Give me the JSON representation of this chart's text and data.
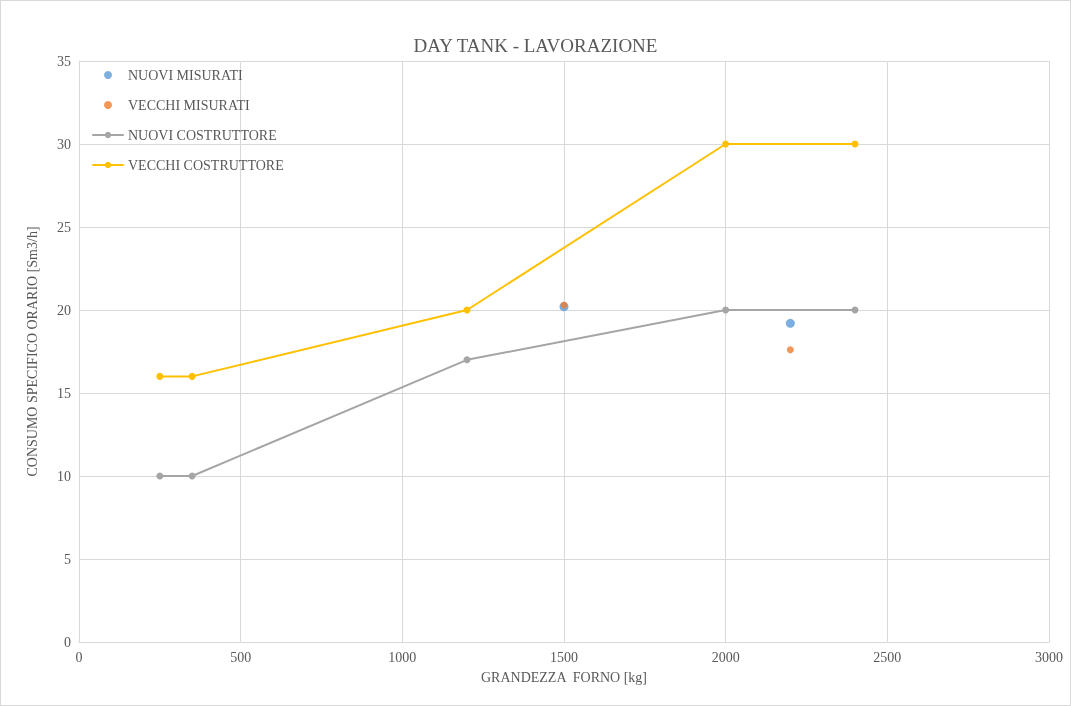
{
  "chart_data": {
    "type": "line",
    "title": "DAY TANK - LAVORAZIONE",
    "xlabel": "GRANDEZZA  FORNO [kg]",
    "ylabel": "CONSUMO SPECIFICO ORARIO [Sm3/h]",
    "series": [
      {
        "name": "NUOVI MISURATI",
        "type": "scatter",
        "color": "#5b9bd5",
        "x": [
          1500,
          2200
        ],
        "values": [
          20.2,
          19.2
        ]
      },
      {
        "name": "VECCHI MISURATI",
        "type": "scatter",
        "color": "#ed7d31",
        "x": [
          1500,
          2200
        ],
        "values": [
          20.3,
          17.6
        ]
      },
      {
        "name": "NUOVI COSTRUTTORE",
        "type": "line",
        "color": "#a5a5a5",
        "x": [
          250,
          350,
          1200,
          2000,
          2400
        ],
        "values": [
          10,
          10,
          17,
          20,
          20
        ]
      },
      {
        "name": "VECCHI COSTRUTTORE",
        "type": "line",
        "color": "#ffc000",
        "x": [
          250,
          350,
          1200,
          2000,
          2400
        ],
        "values": [
          16,
          16,
          20,
          30,
          30
        ]
      }
    ],
    "xlim": [
      0,
      3000
    ],
    "xticks": [
      0,
      500,
      1000,
      1500,
      2000,
      2500,
      3000
    ],
    "ylim": [
      0,
      35
    ],
    "yticks": [
      0,
      5,
      10,
      15,
      20,
      25,
      30,
      35
    ],
    "grid": true,
    "legend": "top left",
    "marker": "circle",
    "line_style": "solid"
  }
}
